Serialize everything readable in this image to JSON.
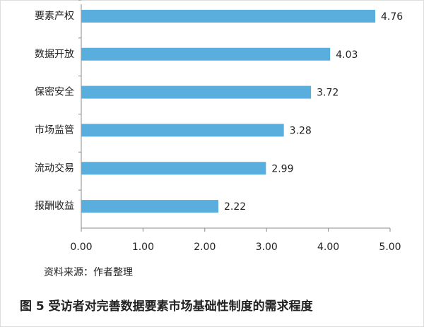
{
  "chart_data": {
    "type": "bar",
    "orientation": "horizontal",
    "title": "图 5   受访者对完善数据要素市场基础性制度的需求程度",
    "source": "资料来源：作者整理",
    "categories": [
      "要素产权",
      "数据开放",
      "保密安全",
      "市场监管",
      "流动交易",
      "报酬收益"
    ],
    "values": [
      4.76,
      4.03,
      3.72,
      3.28,
      2.99,
      2.22
    ],
    "color": "#5aaede",
    "xlim": [
      0,
      5
    ],
    "xticks": [
      {
        "value": 0,
        "label": "0.00"
      },
      {
        "value": 1,
        "label": "1.00"
      },
      {
        "value": 2,
        "label": "2.00"
      },
      {
        "value": 3,
        "label": "3.00"
      },
      {
        "value": 4,
        "label": "4.00"
      },
      {
        "value": 5,
        "label": "5.00"
      }
    ],
    "grid": false
  }
}
